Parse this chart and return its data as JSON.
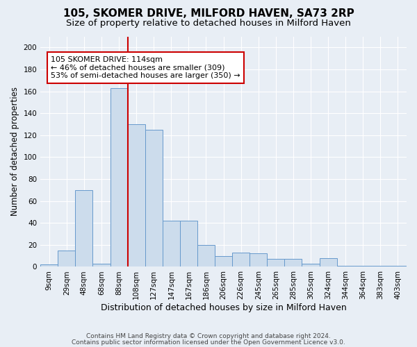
{
  "title": "105, SKOMER DRIVE, MILFORD HAVEN, SA73 2RP",
  "subtitle": "Size of property relative to detached houses in Milford Haven",
  "xlabel": "Distribution of detached houses by size in Milford Haven",
  "ylabel": "Number of detached properties",
  "footer_line1": "Contains HM Land Registry data © Crown copyright and database right 2024.",
  "footer_line2": "Contains public sector information licensed under the Open Government Licence v3.0.",
  "bar_labels": [
    "9sqm",
    "29sqm",
    "48sqm",
    "68sqm",
    "88sqm",
    "108sqm",
    "127sqm",
    "147sqm",
    "167sqm",
    "186sqm",
    "206sqm",
    "226sqm",
    "245sqm",
    "265sqm",
    "285sqm",
    "305sqm",
    "324sqm",
    "344sqm",
    "364sqm",
    "383sqm",
    "403sqm"
  ],
  "bar_values": [
    2,
    15,
    70,
    3,
    163,
    130,
    125,
    42,
    42,
    20,
    10,
    13,
    12,
    7,
    7,
    3,
    8,
    1,
    1,
    1,
    1
  ],
  "bar_color": "#ccdcec",
  "bar_edge_color": "#6699cc",
  "bar_edge_width": 0.7,
  "vline_x_index": 5,
  "vline_color": "#cc0000",
  "annotation_text": "105 SKOMER DRIVE: 114sqm\n← 46% of detached houses are smaller (309)\n53% of semi-detached houses are larger (350) →",
  "annotation_box_facecolor": "#ffffff",
  "annotation_box_edgecolor": "#cc0000",
  "ylim": [
    0,
    210
  ],
  "yticks": [
    0,
    20,
    40,
    60,
    80,
    100,
    120,
    140,
    160,
    180,
    200
  ],
  "bg_color": "#e8eef5",
  "plot_bg_color": "#e8eef5",
  "grid_color": "#ffffff",
  "title_fontsize": 11,
  "subtitle_fontsize": 9.5,
  "xlabel_fontsize": 9,
  "ylabel_fontsize": 8.5,
  "tick_fontsize": 7.5,
  "annotation_fontsize": 8,
  "footer_fontsize": 6.5
}
